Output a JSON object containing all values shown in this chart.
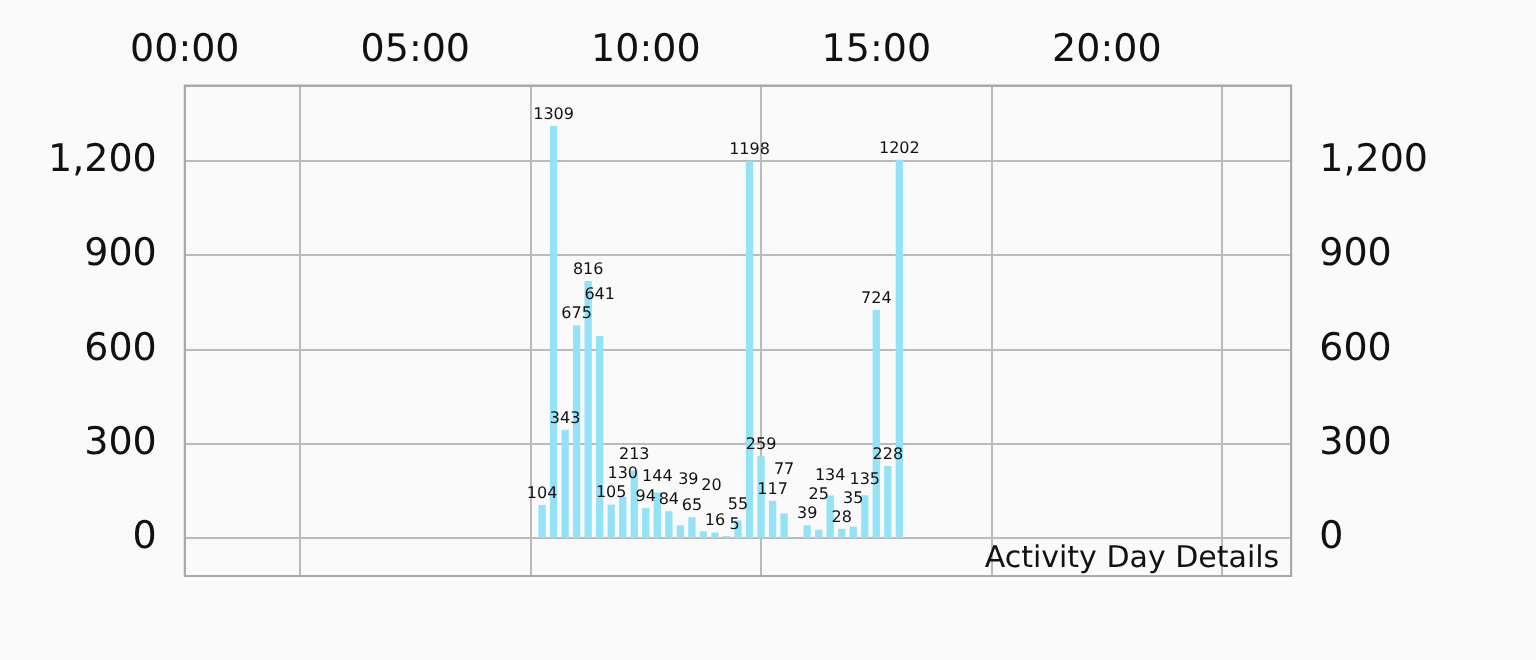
{
  "chart_data": {
    "type": "bar",
    "x": [
      7.75,
      8,
      8.25,
      8.5,
      8.75,
      9,
      9.25,
      9.5,
      9.75,
      10,
      10.25,
      10.5,
      10.75,
      11,
      11.25,
      11.5,
      11.75,
      12,
      12.25,
      12.5,
      12.75,
      13,
      13.5,
      13.75,
      14,
      14.25,
      14.5,
      14.75,
      15,
      15.25,
      15.5
    ],
    "values": [
      104,
      1309,
      343,
      675,
      816,
      641,
      105,
      130,
      213,
      94,
      144,
      84,
      39,
      65,
      20,
      16,
      5,
      55,
      1198,
      259,
      117,
      77,
      39,
      25,
      134,
      28,
      35,
      135,
      724,
      228,
      1202
    ],
    "color": "#94e2f5",
    "xlim": [
      0,
      24
    ],
    "xticks": [
      {
        "value": 0,
        "label": "00:00"
      },
      {
        "value": 5,
        "label": "05:00"
      },
      {
        "value": 10,
        "label": "10:00"
      },
      {
        "value": 15,
        "label": "15:00"
      },
      {
        "value": 20,
        "label": "20:00"
      }
    ],
    "ylim": [
      -120,
      1440
    ],
    "yticks": [
      {
        "value": 0,
        "label": "0"
      },
      {
        "value": 300,
        "label": "300"
      },
      {
        "value": 600,
        "label": "600"
      },
      {
        "value": 900,
        "label": "900"
      },
      {
        "value": 1200,
        "label": "1,200"
      }
    ],
    "y2lim": [
      -120,
      1440
    ],
    "y2ticks": [
      {
        "value": 0,
        "label": "0"
      },
      {
        "value": 300,
        "label": "300"
      },
      {
        "value": 600,
        "label": "600"
      },
      {
        "value": 900,
        "label": "900"
      },
      {
        "value": 1200,
        "label": "1,200"
      }
    ],
    "grid": true,
    "data_labels": true,
    "annotations": [
      "Activity Day Details"
    ]
  }
}
